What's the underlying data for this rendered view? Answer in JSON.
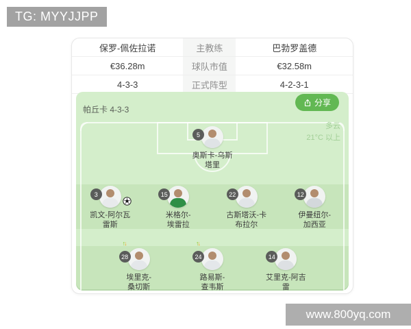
{
  "header": {
    "tg_label": "TG: MYYJJPP"
  },
  "watermark": {
    "text": "www.800yq.com"
  },
  "comparison_table": {
    "rows": [
      {
        "left": "保罗-佩佐拉诺",
        "center": "主教练",
        "right": "巴勃罗盖德"
      },
      {
        "left": "€36.28m",
        "center": "球队市值",
        "right": "€32.58m"
      },
      {
        "left": "4-3-3",
        "center": "正式阵型",
        "right": "4-2-3-1"
      }
    ]
  },
  "pitch": {
    "team_label": "帕丘卡 4-3-3",
    "share_label": "分享",
    "weather": {
      "line1": "多云",
      "line2": "21°C 以上"
    },
    "colors": {
      "grass_light": "#d4eecb",
      "grass_dark": "#c7e5bb",
      "share_green": "#62b853",
      "line_white": "rgba(255,255,255,0.75)"
    },
    "rows": [
      {
        "name": "goalkeeper",
        "players": [
          {
            "number": "5",
            "name_line1": "奥斯卡-乌斯",
            "name_line2": "塔里",
            "shirt": "#dfe3e6",
            "goal": false,
            "sub": false
          }
        ]
      },
      {
        "name": "defenders",
        "players": [
          {
            "number": "3",
            "name_line1": "凯文-阿尔瓦",
            "name_line2": "雷斯",
            "shirt": "#e8eaec",
            "goal": true,
            "sub": false
          },
          {
            "number": "15",
            "name_line1": "米格尔-",
            "name_line2": "埃雷拉",
            "shirt": "#2f8f46",
            "goal": false,
            "sub": false
          },
          {
            "number": "22",
            "name_line1": "古斯塔沃-卡",
            "name_line2": "布拉尔",
            "shirt": "#e2e5e8",
            "goal": false,
            "sub": false
          },
          {
            "number": "12",
            "name_line1": "伊曼纽尔-",
            "name_line2": "加西亚",
            "shirt": "#d3d8dc",
            "goal": false,
            "sub": false
          }
        ]
      },
      {
        "name": "midfielders",
        "players": [
          {
            "number": "28",
            "name_line1": "埃里克-",
            "name_line2": "桑切斯",
            "shirt": "#e4e7ea",
            "goal": false,
            "sub": true
          },
          {
            "number": "24",
            "name_line1": "路易斯-",
            "name_line2": "查韦斯",
            "shirt": "#e4e7ea",
            "goal": false,
            "sub": true
          },
          {
            "number": "14",
            "name_line1": "艾里克-阿吉",
            "name_line2": "雷",
            "shirt": "#dde0e3",
            "goal": false,
            "sub": false
          }
        ]
      }
    ]
  }
}
